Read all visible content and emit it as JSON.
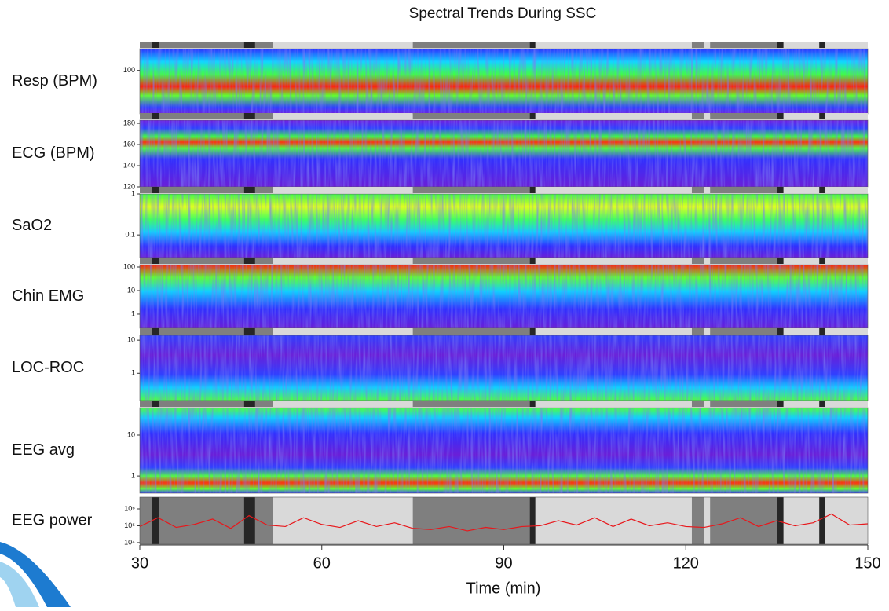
{
  "figure": {
    "title": "Spectral Trends During SSC",
    "xlabel": "Time (min)",
    "xlim": [
      30,
      150
    ],
    "xticks": [
      30,
      60,
      90,
      120,
      150
    ],
    "stages": [
      {
        "start": 30,
        "end": 52,
        "color": "#7f7f7f"
      },
      {
        "start": 52,
        "end": 75,
        "color": "#d9d9d9"
      },
      {
        "start": 75,
        "end": 94.5,
        "color": "#7f7f7f"
      },
      {
        "start": 94.5,
        "end": 121,
        "color": "#d9d9d9"
      },
      {
        "start": 121,
        "end": 123,
        "color": "#7f7f7f"
      },
      {
        "start": 123,
        "end": 124,
        "color": "#d9d9d9"
      },
      {
        "start": 124,
        "end": 135.5,
        "color": "#7f7f7f"
      },
      {
        "start": 135.5,
        "end": 150,
        "color": "#d9d9d9"
      }
    ],
    "markers": {
      "color": "#262626",
      "intervals": [
        [
          32,
          33.2
        ],
        [
          47.2,
          49
        ],
        [
          94.3,
          95.2
        ],
        [
          135.1,
          136.1
        ],
        [
          142,
          142.9
        ]
      ]
    }
  },
  "chart_data": [
    {
      "type": "heatmap",
      "label": "Resp (BPM)",
      "log": false,
      "ylim": [
        76,
        112
      ],
      "yticks": [
        100
      ]
    },
    {
      "type": "heatmap",
      "label": "ECG (BPM)",
      "log": false,
      "ylim": [
        120,
        183
      ],
      "yticks": [
        120,
        140,
        160,
        180
      ]
    },
    {
      "type": "heatmap",
      "label": "SaO2",
      "log": true,
      "ylim": [
        0.028,
        1
      ],
      "yticks": [
        0.1,
        1
      ]
    },
    {
      "type": "heatmap",
      "label": "Chin EMG",
      "log": true,
      "ylim": [
        0.25,
        126
      ],
      "yticks": [
        1,
        10,
        100
      ]
    },
    {
      "type": "heatmap",
      "label": "LOC-ROC",
      "log": true,
      "ylim": [
        0.15,
        14
      ],
      "yticks": [
        1,
        10
      ]
    },
    {
      "type": "heatmap",
      "label": "EEG avg",
      "log": true,
      "ylim": [
        0.38,
        47
      ],
      "yticks": [
        1,
        10
      ]
    },
    {
      "type": "line",
      "label": "EEG power",
      "log": true,
      "ylim": [
        8000,
        5000000
      ],
      "yticks": [
        {
          "value": 10000,
          "label": "10⁴"
        },
        {
          "value": 100000,
          "label": "10⁵"
        },
        {
          "value": 1000000,
          "label": "10⁶"
        }
      ],
      "x": [
        30,
        33,
        36,
        39,
        42,
        45,
        48,
        51,
        54,
        57,
        60,
        63,
        66,
        69,
        72,
        75,
        78,
        81,
        84,
        87,
        90,
        93,
        96,
        99,
        102,
        105,
        108,
        111,
        114,
        117,
        120,
        123,
        126,
        129,
        132,
        135,
        138,
        141,
        144,
        147,
        150
      ],
      "series": [
        {
          "name": "EEG power",
          "color": "#e8171b",
          "values": [
            90000,
            300000,
            80000,
            120000,
            250000,
            70000,
            400000,
            110000,
            90000,
            300000,
            120000,
            80000,
            200000,
            90000,
            150000,
            70000,
            60000,
            90000,
            50000,
            80000,
            60000,
            90000,
            100000,
            200000,
            110000,
            300000,
            90000,
            250000,
            100000,
            150000,
            90000,
            80000,
            130000,
            300000,
            90000,
            200000,
            100000,
            150000,
            500000,
            110000,
            130000
          ]
        }
      ]
    }
  ]
}
